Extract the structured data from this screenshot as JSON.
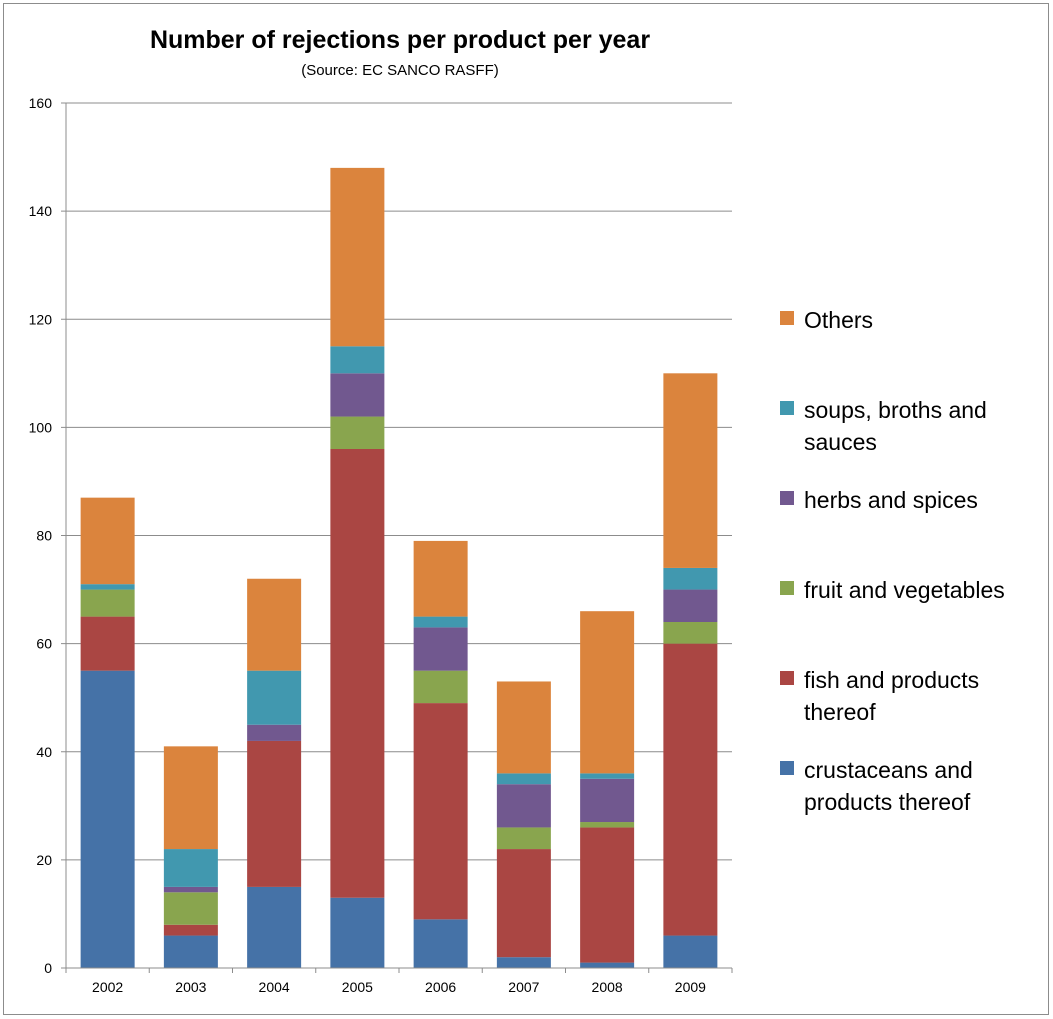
{
  "chart_data": {
    "type": "bar",
    "stacked": true,
    "title": "Number of rejections per product per year",
    "subtitle": "(Source: EC SANCO RASFF)",
    "xlabel": "",
    "ylabel": "",
    "ylim": [
      0,
      160
    ],
    "yticks": [
      0,
      20,
      40,
      60,
      80,
      100,
      120,
      140,
      160
    ],
    "grid": true,
    "legend_position": "right",
    "categories": [
      "2002",
      "2003",
      "2004",
      "2005",
      "2006",
      "2007",
      "2008",
      "2009"
    ],
    "series": [
      {
        "name": "crustaceans and products thereof",
        "color": "#4572a7",
        "values": [
          55,
          6,
          15,
          13,
          9,
          2,
          1,
          6
        ]
      },
      {
        "name": "fish and products thereof",
        "color": "#aa4643",
        "values": [
          10,
          2,
          27,
          83,
          40,
          20,
          25,
          54
        ]
      },
      {
        "name": "fruit and vegetables",
        "color": "#89a54e",
        "values": [
          5,
          6,
          0,
          6,
          6,
          4,
          1,
          4
        ]
      },
      {
        "name": "herbs and spices",
        "color": "#71588f",
        "values": [
          0,
          1,
          3,
          8,
          8,
          8,
          8,
          6
        ]
      },
      {
        "name": "soups, broths and sauces",
        "color": "#4198af",
        "values": [
          1,
          7,
          10,
          5,
          2,
          2,
          1,
          4
        ]
      },
      {
        "name": "Others",
        "color": "#db843d",
        "values": [
          16,
          19,
          17,
          33,
          14,
          17,
          30,
          36
        ]
      }
    ]
  }
}
